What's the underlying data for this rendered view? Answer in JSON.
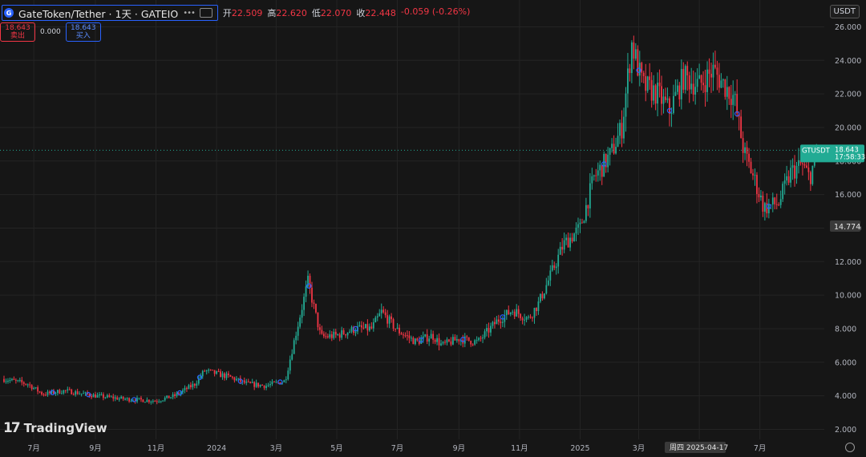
{
  "header": {
    "symbol_title": "GateToken/Tether · 1天 · GATEIO",
    "ohlc": [
      {
        "label": "开",
        "value": "22.509"
      },
      {
        "label": "高",
        "value": "22.620"
      },
      {
        "label": "低",
        "value": "22.070"
      },
      {
        "label": "收",
        "value": "22.448"
      }
    ],
    "change": "-0.059 (-0.26%)"
  },
  "trade": {
    "sell_price": "18.643",
    "sell_label": "卖出",
    "spread": "0.000",
    "buy_price": "18.643",
    "buy_label": "买入"
  },
  "currency_button": "USDT",
  "logo_text": "TradingView",
  "colors": {
    "up": "#22ab94",
    "down": "#f23645",
    "background": "#161616",
    "grid": "#242424",
    "label_bg": "#22ab94"
  },
  "chart_data": {
    "type": "candlestick",
    "y_ticks": [
      "2.000",
      "4.000",
      "6.000",
      "8.000",
      "10.000",
      "12.000",
      "14.000",
      "16.000",
      "18.000",
      "20.000",
      "22.000",
      "24.000",
      "26.000"
    ],
    "x_ticks": [
      "7月",
      "9月",
      "11月",
      "2024",
      "3月",
      "5月",
      "7月",
      "9月",
      "11月",
      "2025",
      "3月",
      "5月",
      "7月"
    ],
    "ylim": [
      1.4,
      27.6
    ],
    "last_price_label": {
      "name": "GTUSDT",
      "price": "18.643",
      "countdown": "17:58:33"
    },
    "crosshair_price": "14.774",
    "crosshair_date": "周四 2025-04-17",
    "price_path": [
      [
        "2023-06-01",
        5.0
      ],
      [
        "2023-06-25",
        4.7
      ],
      [
        "2023-07-10",
        4.1
      ],
      [
        "2023-08-01",
        4.3
      ],
      [
        "2023-09-01",
        4.0
      ],
      [
        "2023-10-01",
        3.8
      ],
      [
        "2023-11-01",
        3.7
      ],
      [
        "2023-11-20",
        4.0
      ],
      [
        "2023-12-10",
        4.7
      ],
      [
        "2023-12-20",
        5.5
      ],
      [
        "2024-01-15",
        5.1
      ],
      [
        "2024-02-01",
        4.7
      ],
      [
        "2024-02-20",
        4.6
      ],
      [
        "2024-03-10",
        4.9
      ],
      [
        "2024-03-20",
        7.5
      ],
      [
        "2024-04-02",
        10.8
      ],
      [
        "2024-04-15",
        7.5
      ],
      [
        "2024-05-01",
        7.6
      ],
      [
        "2024-05-20",
        8.0
      ],
      [
        "2024-06-05",
        8.0
      ],
      [
        "2024-06-15",
        9.0
      ],
      [
        "2024-07-01",
        7.9
      ],
      [
        "2024-07-20",
        7.2
      ],
      [
        "2024-08-05",
        7.6
      ],
      [
        "2024-08-15",
        7.0
      ],
      [
        "2024-09-01",
        7.4
      ],
      [
        "2024-09-20",
        7.2
      ],
      [
        "2024-10-10",
        8.5
      ],
      [
        "2024-10-25",
        9.1
      ],
      [
        "2024-11-10",
        8.6
      ],
      [
        "2024-11-20",
        9.5
      ],
      [
        "2024-12-01",
        11.0
      ],
      [
        "2024-12-15",
        13.0
      ],
      [
        "2025-01-01",
        14.0
      ],
      [
        "2025-01-15",
        17.0
      ],
      [
        "2025-02-01",
        18.4
      ],
      [
        "2025-02-12",
        20.0
      ],
      [
        "2025-02-22",
        25.0
      ],
      [
        "2025-03-05",
        22.5
      ],
      [
        "2025-03-20",
        22.0
      ],
      [
        "2025-04-01",
        21.0
      ],
      [
        "2025-04-15",
        23.0
      ],
      [
        "2025-05-01",
        22.5
      ],
      [
        "2025-05-15",
        23.4
      ],
      [
        "2025-05-25",
        22.6
      ],
      [
        "2025-06-05",
        21.8
      ],
      [
        "2025-06-15",
        18.5
      ],
      [
        "2025-06-25",
        17.0
      ],
      [
        "2025-07-05",
        15.2
      ],
      [
        "2025-07-20",
        15.5
      ],
      [
        "2025-08-01",
        17.3
      ],
      [
        "2025-08-12",
        17.8
      ],
      [
        "2025-08-20",
        17.0
      ],
      [
        "2025-08-28",
        18.6
      ]
    ],
    "grid": true,
    "legend": "none"
  }
}
